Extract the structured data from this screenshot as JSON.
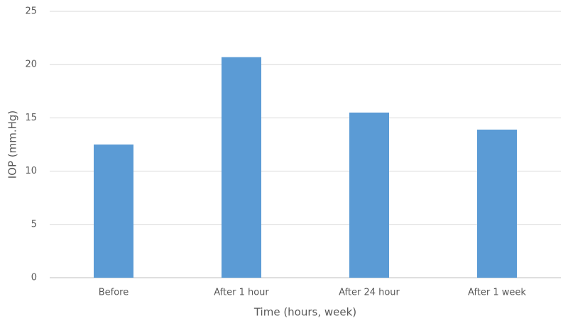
{
  "chart_data": {
    "type": "bar",
    "categories": [
      "Before",
      "After 1 hour",
      "After 24 hour",
      "After 1 week"
    ],
    "values": [
      12.5,
      20.7,
      15.5,
      13.9
    ],
    "color": "#5b9bd5",
    "ylim": [
      0,
      25
    ],
    "yticks": [
      0,
      5,
      10,
      15,
      20,
      25
    ],
    "grid": true,
    "x_label": "Time (hours, week)",
    "y_label": "IOP (mm.Hg)"
  }
}
